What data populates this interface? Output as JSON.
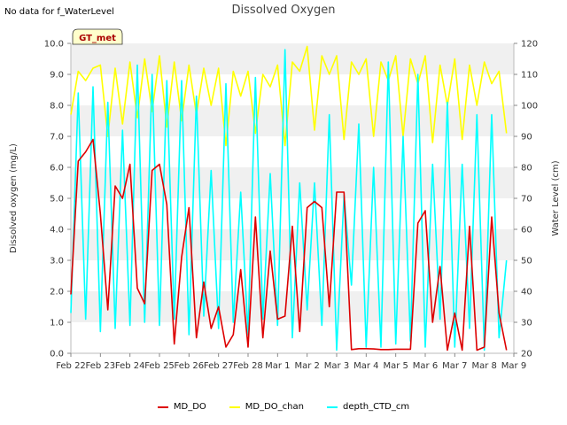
{
  "note": "No data for f_WaterLevel",
  "chart_data": {
    "type": "line",
    "title": "Dissolved Oxygen",
    "ylabel": "Dissolved oxygen (mg/L)",
    "y2label": "Water Level (cm)",
    "badge": "GT_met",
    "ylim": [
      0,
      10
    ],
    "y2lim": [
      20,
      120
    ],
    "yticks": [
      "0.0",
      "1.0",
      "2.0",
      "3.0",
      "4.0",
      "5.0",
      "6.0",
      "7.0",
      "8.0",
      "9.0",
      "10.0"
    ],
    "y2ticks": [
      "20",
      "30",
      "40",
      "50",
      "60",
      "70",
      "80",
      "90",
      "100",
      "110",
      "120"
    ],
    "xlim": [
      "2020-02-22",
      "2020-03-09"
    ],
    "xticks": [
      "Feb 22",
      "Feb 23",
      "Feb 24",
      "Feb 25",
      "Feb 26",
      "Feb 27",
      "Feb 28",
      "Mar 1",
      "Mar 2",
      "Mar 3",
      "Mar 4",
      "Mar 5",
      "Mar 6",
      "Mar 7",
      "Mar 8",
      "Mar 9"
    ],
    "grid": "horizontal bands",
    "legend_position": "bottom",
    "series": [
      {
        "name": "MD_DO",
        "axis": "left",
        "color": "#dd0000",
        "x": [
          "Feb 22 00:00",
          "Feb 22 06:00",
          "Feb 22 12:00",
          "Feb 22 18:00",
          "Feb 23 00:00",
          "Feb 23 06:00",
          "Feb 23 12:00",
          "Feb 23 18:00",
          "Feb 24 00:00",
          "Feb 24 06:00",
          "Feb 24 12:00",
          "Feb 24 18:00",
          "Feb 25 00:00",
          "Feb 25 06:00",
          "Feb 25 12:00",
          "Feb 25 18:00",
          "Feb 26 00:00",
          "Feb 26 06:00",
          "Feb 26 12:00",
          "Feb 26 18:00",
          "Feb 27 00:00",
          "Feb 27 06:00",
          "Feb 27 12:00",
          "Feb 27 18:00",
          "Feb 28 00:00",
          "Feb 28 06:00",
          "Feb 28 12:00",
          "Feb 28 18:00",
          "Mar 1 00:00",
          "Mar 1 06:00",
          "Mar 1 12:00",
          "Mar 1 18:00",
          "Mar 2 00:00",
          "Mar 2 06:00",
          "Mar 2 12:00",
          "Mar 2 18:00",
          "Mar 3 00:00",
          "Mar 3 06:00",
          "Mar 3 12:00",
          "Mar 3 18:00",
          "Mar 4 00:00",
          "Mar 4 06:00",
          "Mar 4 12:00",
          "Mar 4 18:00",
          "Mar 5 00:00",
          "Mar 5 06:00",
          "Mar 5 12:00",
          "Mar 5 18:00",
          "Mar 6 00:00",
          "Mar 6 06:00",
          "Mar 6 12:00",
          "Mar 6 18:00",
          "Mar 7 00:00",
          "Mar 7 06:00",
          "Mar 7 12:00",
          "Mar 7 18:00",
          "Mar 8 00:00",
          "Mar 8 06:00",
          "Mar 8 12:00",
          "Mar 8 18:00"
        ],
        "values": [
          1.9,
          6.2,
          6.5,
          6.9,
          4.5,
          1.4,
          5.4,
          5.0,
          6.1,
          2.1,
          1.6,
          5.9,
          6.1,
          4.8,
          0.3,
          3.1,
          4.7,
          0.5,
          2.3,
          0.8,
          1.5,
          0.2,
          0.6,
          2.7,
          0.2,
          4.4,
          0.5,
          3.3,
          1.1,
          1.2,
          4.1,
          0.7,
          4.7,
          4.9,
          4.7,
          1.5,
          5.2,
          5.2,
          0.12,
          0.15,
          0.15,
          0.14,
          0.12,
          0.12,
          0.13,
          0.13,
          0.13,
          4.2,
          4.6,
          1.0,
          2.8,
          0.1,
          1.3,
          0.1,
          4.1,
          0.1,
          0.2,
          4.4,
          1.3,
          0.1
        ]
      },
      {
        "name": "MD_DO_chan",
        "axis": "left",
        "color": "#ffff00",
        "x": [
          "Feb 22 00:00",
          "Feb 22 06:00",
          "Feb 22 12:00",
          "Feb 22 18:00",
          "Feb 23 00:00",
          "Feb 23 06:00",
          "Feb 23 12:00",
          "Feb 23 18:00",
          "Feb 24 00:00",
          "Feb 24 06:00",
          "Feb 24 12:00",
          "Feb 24 18:00",
          "Feb 25 00:00",
          "Feb 25 06:00",
          "Feb 25 12:00",
          "Feb 25 18:00",
          "Feb 26 00:00",
          "Feb 26 06:00",
          "Feb 26 12:00",
          "Feb 26 18:00",
          "Feb 27 00:00",
          "Feb 27 06:00",
          "Feb 27 12:00",
          "Feb 27 18:00",
          "Feb 28 00:00",
          "Feb 28 06:00",
          "Feb 28 12:00",
          "Feb 28 18:00",
          "Mar 1 00:00",
          "Mar 1 06:00",
          "Mar 1 12:00",
          "Mar 1 18:00",
          "Mar 2 00:00",
          "Mar 2 06:00",
          "Mar 2 12:00",
          "Mar 2 18:00",
          "Mar 3 00:00",
          "Mar 3 06:00",
          "Mar 3 12:00",
          "Mar 3 18:00",
          "Mar 4 00:00",
          "Mar 4 06:00",
          "Mar 4 12:00",
          "Mar 4 18:00",
          "Mar 5 00:00",
          "Mar 5 06:00",
          "Mar 5 12:00",
          "Mar 5 18:00",
          "Mar 6 00:00",
          "Mar 6 06:00",
          "Mar 6 12:00",
          "Mar 6 18:00",
          "Mar 7 00:00",
          "Mar 7 06:00",
          "Mar 7 12:00",
          "Mar 7 18:00",
          "Mar 8 00:00",
          "Mar 8 06:00",
          "Mar 8 12:00",
          "Mar 8 18:00"
        ],
        "values": [
          7.7,
          9.1,
          8.8,
          9.2,
          9.3,
          7.0,
          9.2,
          7.4,
          9.4,
          7.6,
          9.5,
          7.8,
          9.6,
          7.3,
          9.4,
          7.5,
          9.3,
          7.7,
          9.2,
          8.0,
          9.2,
          6.7,
          9.1,
          8.3,
          9.1,
          7.1,
          9.0,
          8.6,
          9.3,
          6.7,
          9.4,
          9.1,
          9.9,
          7.2,
          9.6,
          9.0,
          9.6,
          6.9,
          9.4,
          9.0,
          9.5,
          7.0,
          9.4,
          8.8,
          9.6,
          7.0,
          9.5,
          8.7,
          9.6,
          6.8,
          9.3,
          8.0,
          9.5,
          6.9,
          9.3,
          8.0,
          9.4,
          8.7,
          9.1,
          7.1
        ]
      },
      {
        "name": "depth_CTD_cm",
        "axis": "right",
        "color": "#00ffff",
        "x": [
          "Feb 22 00:00",
          "Feb 22 06:00",
          "Feb 22 12:00",
          "Feb 22 18:00",
          "Feb 23 00:00",
          "Feb 23 06:00",
          "Feb 23 12:00",
          "Feb 23 18:00",
          "Feb 24 00:00",
          "Feb 24 06:00",
          "Feb 24 12:00",
          "Feb 24 18:00",
          "Feb 25 00:00",
          "Feb 25 06:00",
          "Feb 25 12:00",
          "Feb 25 18:00",
          "Feb 26 00:00",
          "Feb 26 06:00",
          "Feb 26 12:00",
          "Feb 26 18:00",
          "Feb 27 00:00",
          "Feb 27 06:00",
          "Feb 27 12:00",
          "Feb 27 18:00",
          "Feb 28 00:00",
          "Feb 28 06:00",
          "Feb 28 12:00",
          "Feb 28 18:00",
          "Mar 1 00:00",
          "Mar 1 06:00",
          "Mar 1 12:00",
          "Mar 1 18:00",
          "Mar 2 00:00",
          "Mar 2 06:00",
          "Mar 2 12:00",
          "Mar 2 18:00",
          "Mar 3 00:00",
          "Mar 3 06:00",
          "Mar 3 12:00",
          "Mar 3 18:00",
          "Mar 4 00:00",
          "Mar 4 06:00",
          "Mar 4 12:00",
          "Mar 4 18:00",
          "Mar 5 00:00",
          "Mar 5 06:00",
          "Mar 5 12:00",
          "Mar 5 18:00",
          "Mar 6 00:00",
          "Mar 6 06:00",
          "Mar 6 12:00",
          "Mar 6 18:00",
          "Mar 7 00:00",
          "Mar 7 06:00",
          "Mar 7 12:00",
          "Mar 7 18:00",
          "Mar 8 00:00",
          "Mar 8 06:00",
          "Mar 8 12:00",
          "Mar 8 18:00"
        ],
        "values": [
          33,
          104,
          31,
          106,
          27,
          101,
          28,
          92,
          29,
          113,
          30,
          110,
          29,
          108,
          31,
          108,
          26,
          103,
          32,
          79,
          28,
          107,
          30,
          72,
          26,
          109,
          31,
          78,
          29,
          118,
          25,
          75,
          34,
          75,
          29,
          97,
          21,
          71,
          42,
          94,
          22,
          80,
          22,
          114,
          23,
          90,
          24,
          110,
          22,
          81,
          31,
          101,
          22,
          81,
          28,
          97,
          21,
          97,
          25,
          50
        ]
      }
    ]
  }
}
